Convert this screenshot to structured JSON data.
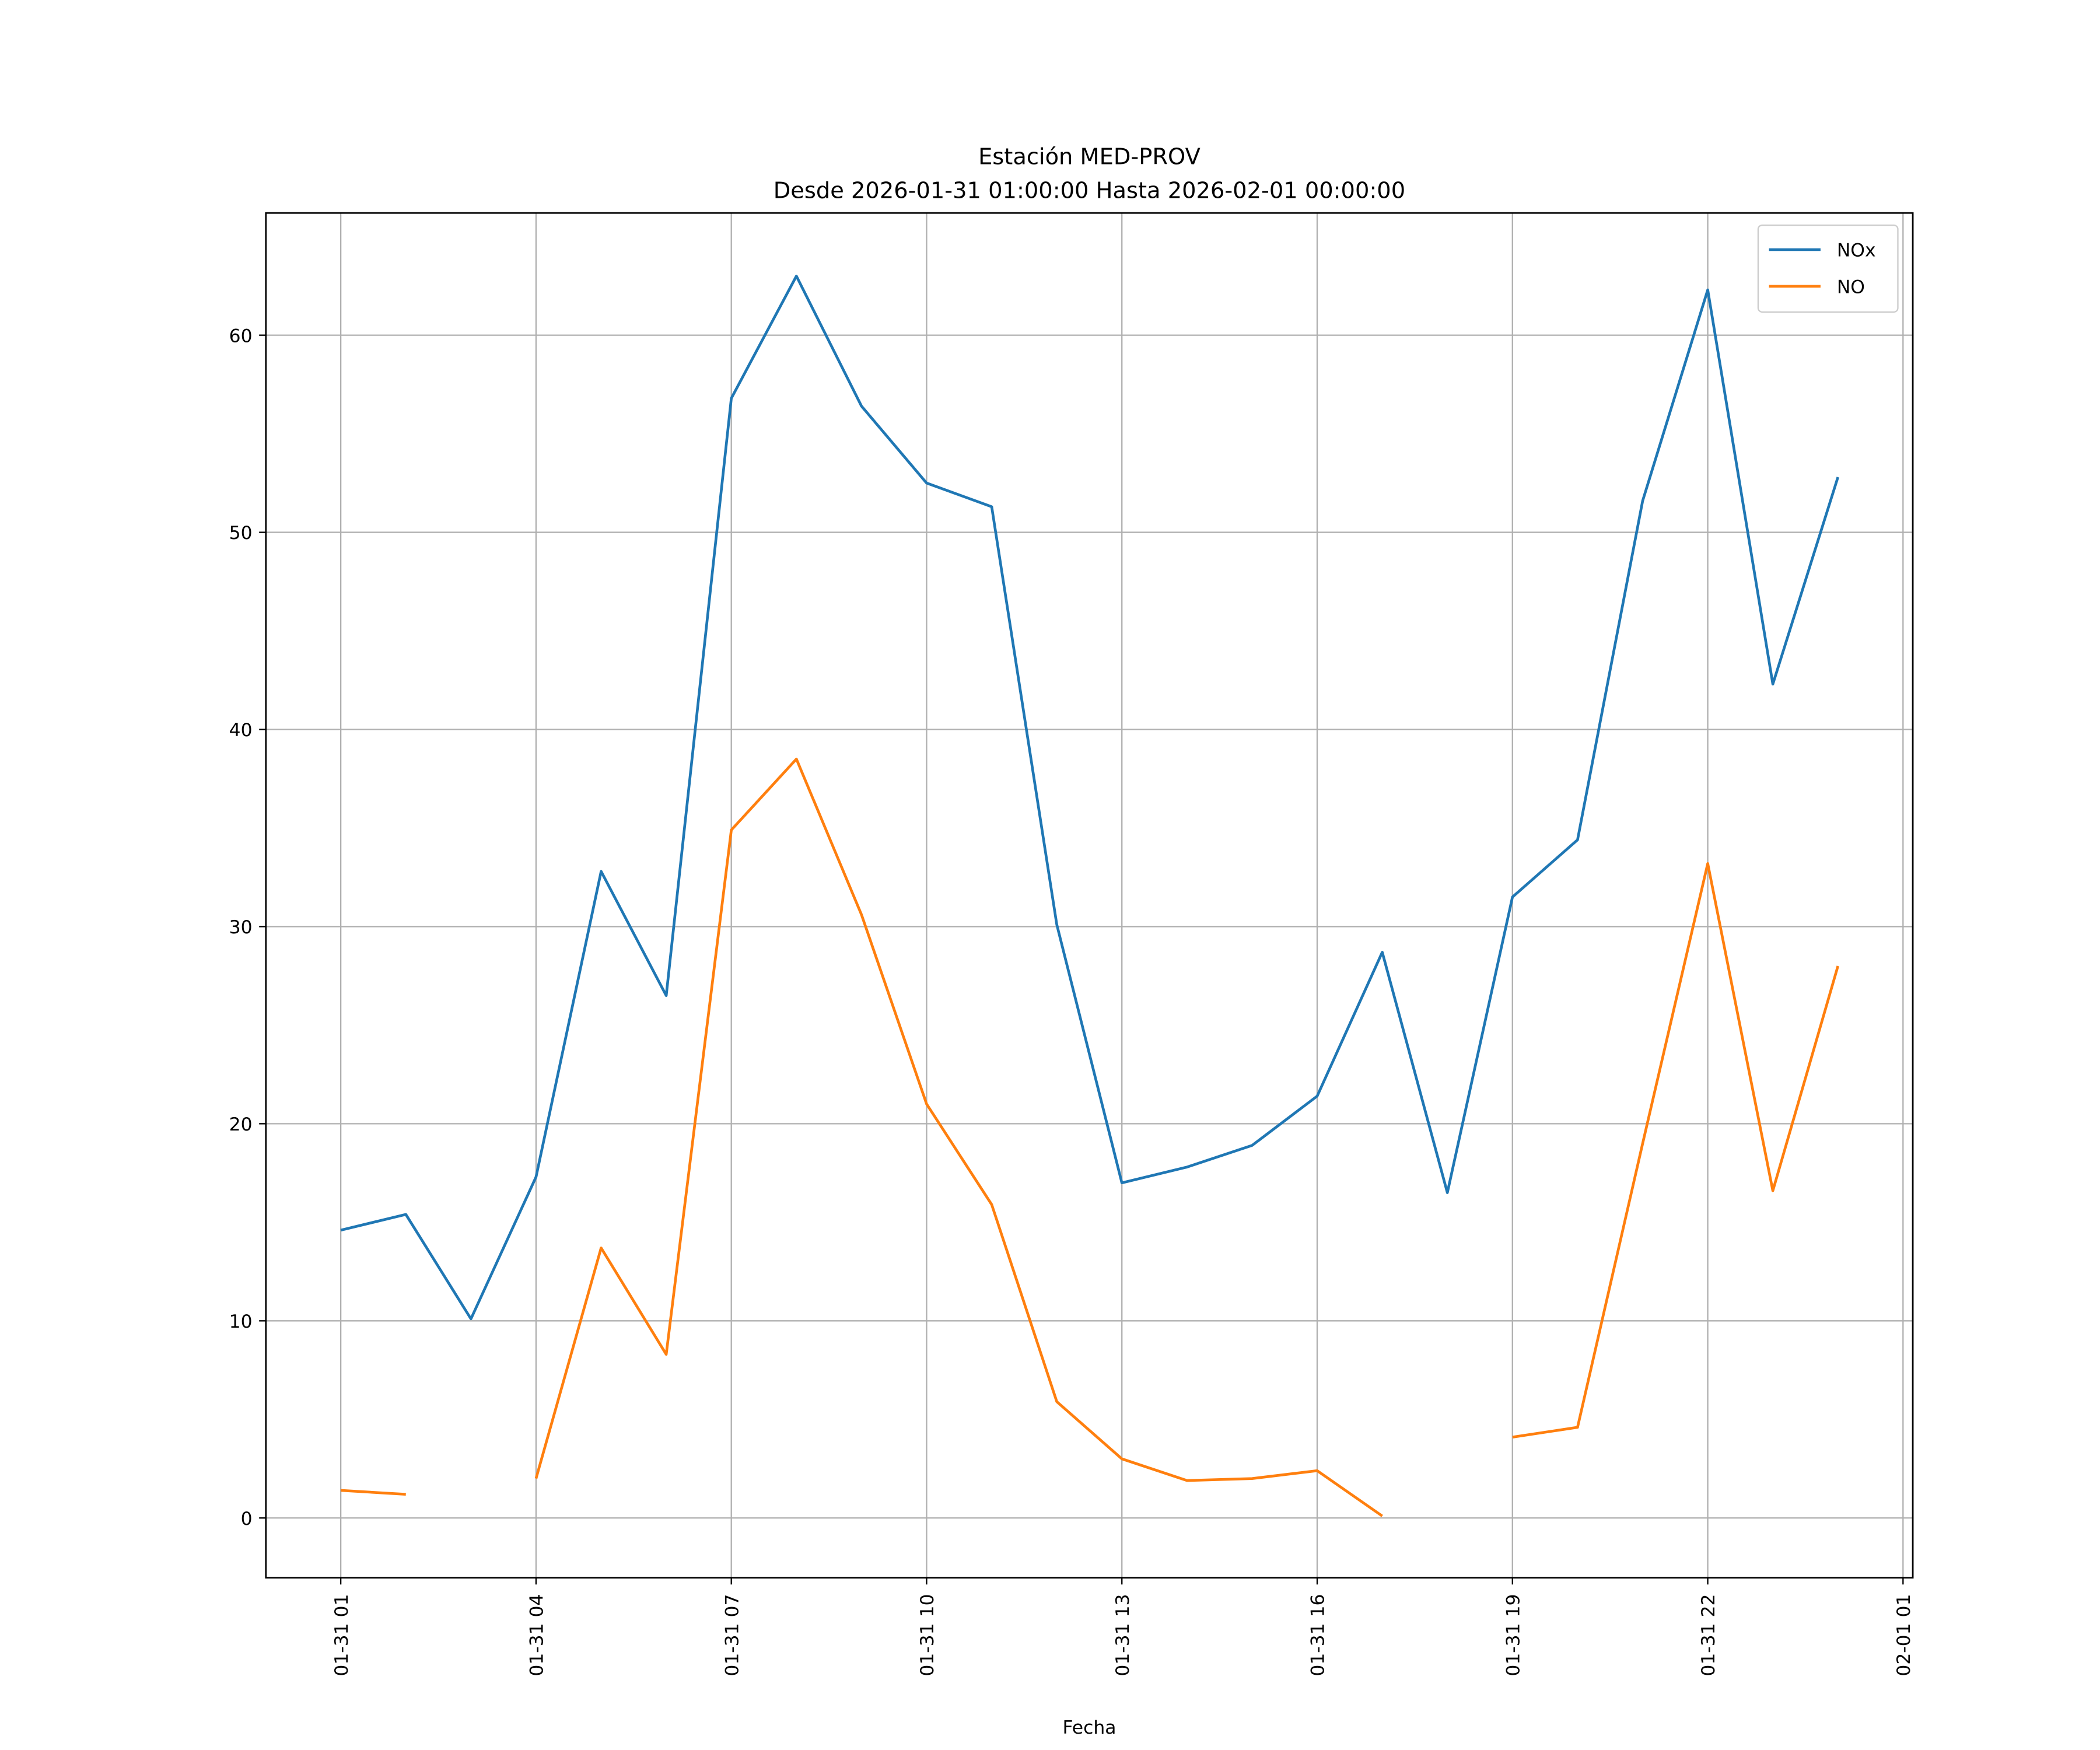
{
  "chart_data": {
    "type": "line",
    "title": "Estación MED-PROV",
    "subtitle": "Desde 2026-01-31 01:00:00 Hasta 2026-02-01 00:00:00",
    "xlabel": "Fecha",
    "x": [
      "01-31 01",
      "01-31 02",
      "01-31 03",
      "01-31 04",
      "01-31 05",
      "01-31 06",
      "01-31 07",
      "01-31 08",
      "01-31 09",
      "01-31 10",
      "01-31 11",
      "01-31 12",
      "01-31 13",
      "01-31 14",
      "01-31 15",
      "01-31 16",
      "01-31 17",
      "01-31 18",
      "01-31 19",
      "01-31 20",
      "01-31 21",
      "01-31 22",
      "01-31 23",
      "02-01 00"
    ],
    "series": [
      {
        "name": "NOx",
        "color": "#1f77b4",
        "values": [
          14.6,
          15.4,
          10.1,
          17.3,
          32.8,
          26.5,
          56.8,
          63.0,
          56.4,
          52.5,
          51.3,
          30.1,
          17.0,
          17.8,
          18.9,
          21.4,
          28.7,
          16.5,
          31.5,
          34.4,
          51.6,
          62.3,
          42.3,
          52.8
        ]
      },
      {
        "name": "NO",
        "color": "#ff7f0e",
        "values": [
          1.4,
          1.2,
          null,
          2.0,
          13.7,
          8.3,
          34.9,
          38.5,
          30.6,
          21.0,
          15.9,
          5.9,
          3.0,
          1.9,
          2.0,
          2.4,
          0.1,
          null,
          4.1,
          4.6,
          19.0,
          33.2,
          16.6,
          28.0
        ]
      }
    ],
    "xlim": [
      "01-30 23:51",
      "02-01 01:09"
    ],
    "xticks": [
      "01-31 01",
      "01-31 04",
      "01-31 07",
      "01-31 10",
      "01-31 13",
      "01-31 16",
      "01-31 19",
      "01-31 22",
      "02-01 01"
    ],
    "ylim": [
      -3.03,
      66.2
    ],
    "yticks": [
      0,
      10,
      20,
      30,
      40,
      50,
      60
    ],
    "grid": true,
    "legend": "upper right"
  }
}
